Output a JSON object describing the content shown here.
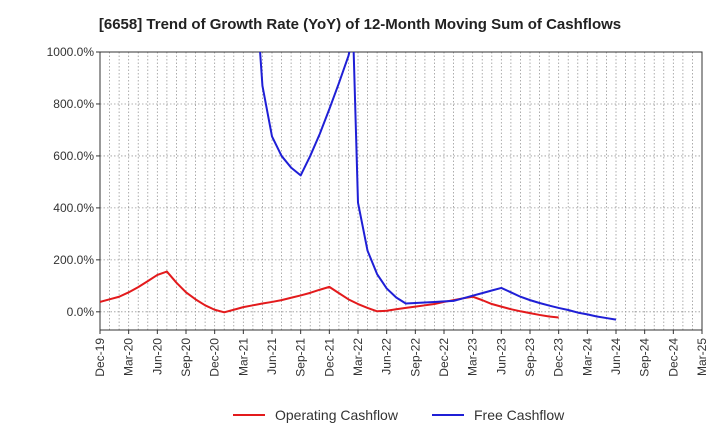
{
  "chart_data": {
    "type": "line",
    "title": "[6658]  Trend of Growth Rate (YoY) of 12-Month Moving Sum of Cashflows",
    "xlabel": "",
    "ylabel": "",
    "ylim": [
      -70,
      1000
    ],
    "yticks": [
      0,
      200,
      400,
      600,
      800,
      1000
    ],
    "ytick_labels": [
      "0.0%",
      "200.0%",
      "400.0%",
      "600.0%",
      "800.0%",
      "1000.0%"
    ],
    "x_tick_labels": [
      "Dec-19",
      "Mar-20",
      "Jun-20",
      "Sep-20",
      "Dec-20",
      "Mar-21",
      "Jun-21",
      "Sep-21",
      "Dec-21",
      "Mar-22",
      "Jun-22",
      "Sep-22",
      "Dec-22",
      "Mar-23",
      "Jun-23",
      "Sep-23",
      "Dec-23",
      "Mar-24",
      "Jun-24",
      "Sep-24",
      "Dec-24",
      "Mar-25"
    ],
    "grid": true,
    "legend_position": "bottom",
    "series": [
      {
        "name": "Operating Cashflow",
        "color": "#e31a1c",
        "points": [
          [
            0,
            38
          ],
          [
            1,
            48
          ],
          [
            2,
            58
          ],
          [
            3,
            75
          ],
          [
            4,
            95
          ],
          [
            5,
            118
          ],
          [
            6,
            142
          ],
          [
            7,
            155
          ],
          [
            8,
            112
          ],
          [
            9,
            75
          ],
          [
            10,
            48
          ],
          [
            11,
            25
          ],
          [
            12,
            8
          ],
          [
            13,
            -2
          ],
          [
            14,
            8
          ],
          [
            15,
            18
          ],
          [
            16,
            25
          ],
          [
            17,
            32
          ],
          [
            18,
            38
          ],
          [
            19,
            45
          ],
          [
            20,
            54
          ],
          [
            21,
            63
          ],
          [
            22,
            73
          ],
          [
            23,
            85
          ],
          [
            24,
            96
          ],
          [
            25,
            72
          ],
          [
            26,
            48
          ],
          [
            27,
            30
          ],
          [
            28,
            15
          ],
          [
            29,
            2
          ],
          [
            30,
            4
          ],
          [
            31,
            10
          ],
          [
            32,
            15
          ],
          [
            33,
            20
          ],
          [
            34,
            25
          ],
          [
            35,
            30
          ],
          [
            36,
            38
          ],
          [
            37,
            45
          ],
          [
            38,
            52
          ],
          [
            39,
            58
          ],
          [
            40,
            45
          ],
          [
            41,
            30
          ],
          [
            42,
            20
          ],
          [
            43,
            10
          ],
          [
            44,
            2
          ],
          [
            45,
            -5
          ],
          [
            46,
            -12
          ],
          [
            47,
            -18
          ],
          [
            48,
            -22
          ]
        ]
      },
      {
        "name": "Free Cashflow",
        "color": "#1f1fd6",
        "points": [
          [
            16,
            1400
          ],
          [
            17,
            870
          ],
          [
            18,
            675
          ],
          [
            19,
            600
          ],
          [
            20,
            555
          ],
          [
            21,
            525
          ],
          [
            22,
            600
          ],
          [
            23,
            685
          ],
          [
            24,
            780
          ],
          [
            25,
            880
          ],
          [
            26,
            985
          ],
          [
            26.5,
            1060
          ],
          [
            27,
            420
          ],
          [
            28,
            235
          ],
          [
            29,
            145
          ],
          [
            30,
            90
          ],
          [
            31,
            55
          ],
          [
            32,
            32
          ],
          [
            33,
            34
          ],
          [
            34,
            36
          ],
          [
            35,
            38
          ],
          [
            36,
            40
          ],
          [
            37,
            42
          ],
          [
            38,
            52
          ],
          [
            39,
            62
          ],
          [
            40,
            72
          ],
          [
            41,
            82
          ],
          [
            42,
            92
          ],
          [
            43,
            75
          ],
          [
            44,
            58
          ],
          [
            45,
            45
          ],
          [
            46,
            34
          ],
          [
            47,
            24
          ],
          [
            48,
            15
          ],
          [
            49,
            7
          ],
          [
            50,
            -3
          ],
          [
            51,
            -10
          ],
          [
            52,
            -18
          ],
          [
            53,
            -24
          ],
          [
            54,
            -30
          ]
        ]
      }
    ],
    "x_point_count": 64
  }
}
